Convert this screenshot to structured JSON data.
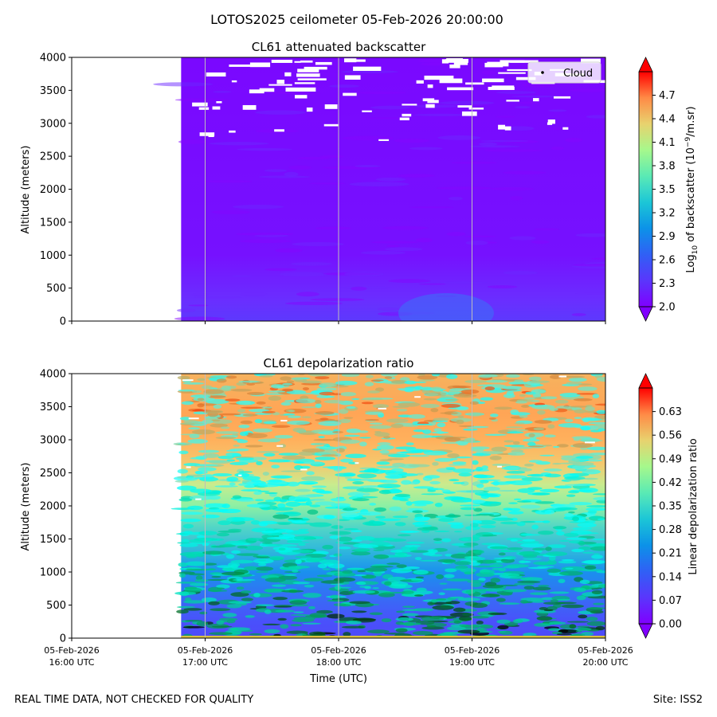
{
  "figure": {
    "title": "LOTOS2025 ceilometer 05-Feb-2026 20:00:00",
    "footer_left": "REAL TIME DATA, NOT CHECKED FOR QUALITY",
    "footer_right": "Site: ISS2"
  },
  "chart_data": [
    {
      "type": "heatmap",
      "title": "CL61 attenuated backscatter",
      "xlabel": "",
      "ylabel": "Altitude (meters)",
      "ylim": [
        0,
        4000
      ],
      "yticks": [
        0,
        500,
        1000,
        1500,
        2000,
        2500,
        3000,
        3500,
        4000
      ],
      "xlim_hours_utc": [
        16.0,
        20.0
      ],
      "data_start_hour_utc": 16.82,
      "x_gridlines_hours_utc": [
        17.0,
        18.0,
        19.0
      ],
      "colorbar": {
        "label_main": "Log",
        "label_sub": "10",
        "label_rest1": " of backscatter (10",
        "label_sup": "−9",
        "label_rest2": "/m.sr)",
        "range": [
          2.0,
          5.0
        ],
        "ticks": [
          "2.0",
          "2.3",
          "2.6",
          "2.9",
          "3.2",
          "3.5",
          "3.8",
          "4.1",
          "4.4",
          "4.7"
        ],
        "colormap": "rainbow",
        "extend": "both"
      },
      "legend": {
        "entries": [
          "Cloud"
        ],
        "placement": "top-right"
      },
      "description_values": {
        "typical_log_backscatter": 2.1,
        "near_surface_log_backscatter": 2.35,
        "cloud_layer_altitude_range_m": [
          2700,
          4000
        ]
      }
    },
    {
      "type": "heatmap",
      "title": "CL61 depolarization ratio",
      "xlabel": "Time (UTC)",
      "ylabel": "Altitude (meters)",
      "ylim": [
        0,
        4000
      ],
      "yticks": [
        0,
        500,
        1000,
        1500,
        2000,
        2500,
        3000,
        3500,
        4000
      ],
      "xlim_hours_utc": [
        16.0,
        20.0
      ],
      "data_start_hour_utc": 16.82,
      "x_gridlines_hours_utc": [
        17.0,
        18.0,
        19.0
      ],
      "xticks": [
        {
          "date": "05-Feb-2026",
          "time": "16:00 UTC"
        },
        {
          "date": "05-Feb-2026",
          "time": "17:00 UTC"
        },
        {
          "date": "05-Feb-2026",
          "time": "18:00 UTC"
        },
        {
          "date": "05-Feb-2026",
          "time": "19:00 UTC"
        },
        {
          "date": "05-Feb-2026",
          "time": "20:00 UTC"
        }
      ],
      "colorbar": {
        "label": "Linear depolarization ratio",
        "range": [
          0.0,
          0.7
        ],
        "ticks": [
          "0.00",
          "0.07",
          "0.14",
          "0.21",
          "0.28",
          "0.35",
          "0.42",
          "0.49",
          "0.56",
          "0.63"
        ],
        "colormap": "rainbow",
        "extend": "both"
      },
      "profile_m_vs_ratio": [
        [
          0,
          0.07
        ],
        [
          500,
          0.1
        ],
        [
          1000,
          0.15
        ],
        [
          1500,
          0.21
        ],
        [
          2000,
          0.3
        ],
        [
          2500,
          0.4
        ],
        [
          3000,
          0.5
        ],
        [
          3500,
          0.54
        ],
        [
          4000,
          0.52
        ]
      ]
    }
  ]
}
